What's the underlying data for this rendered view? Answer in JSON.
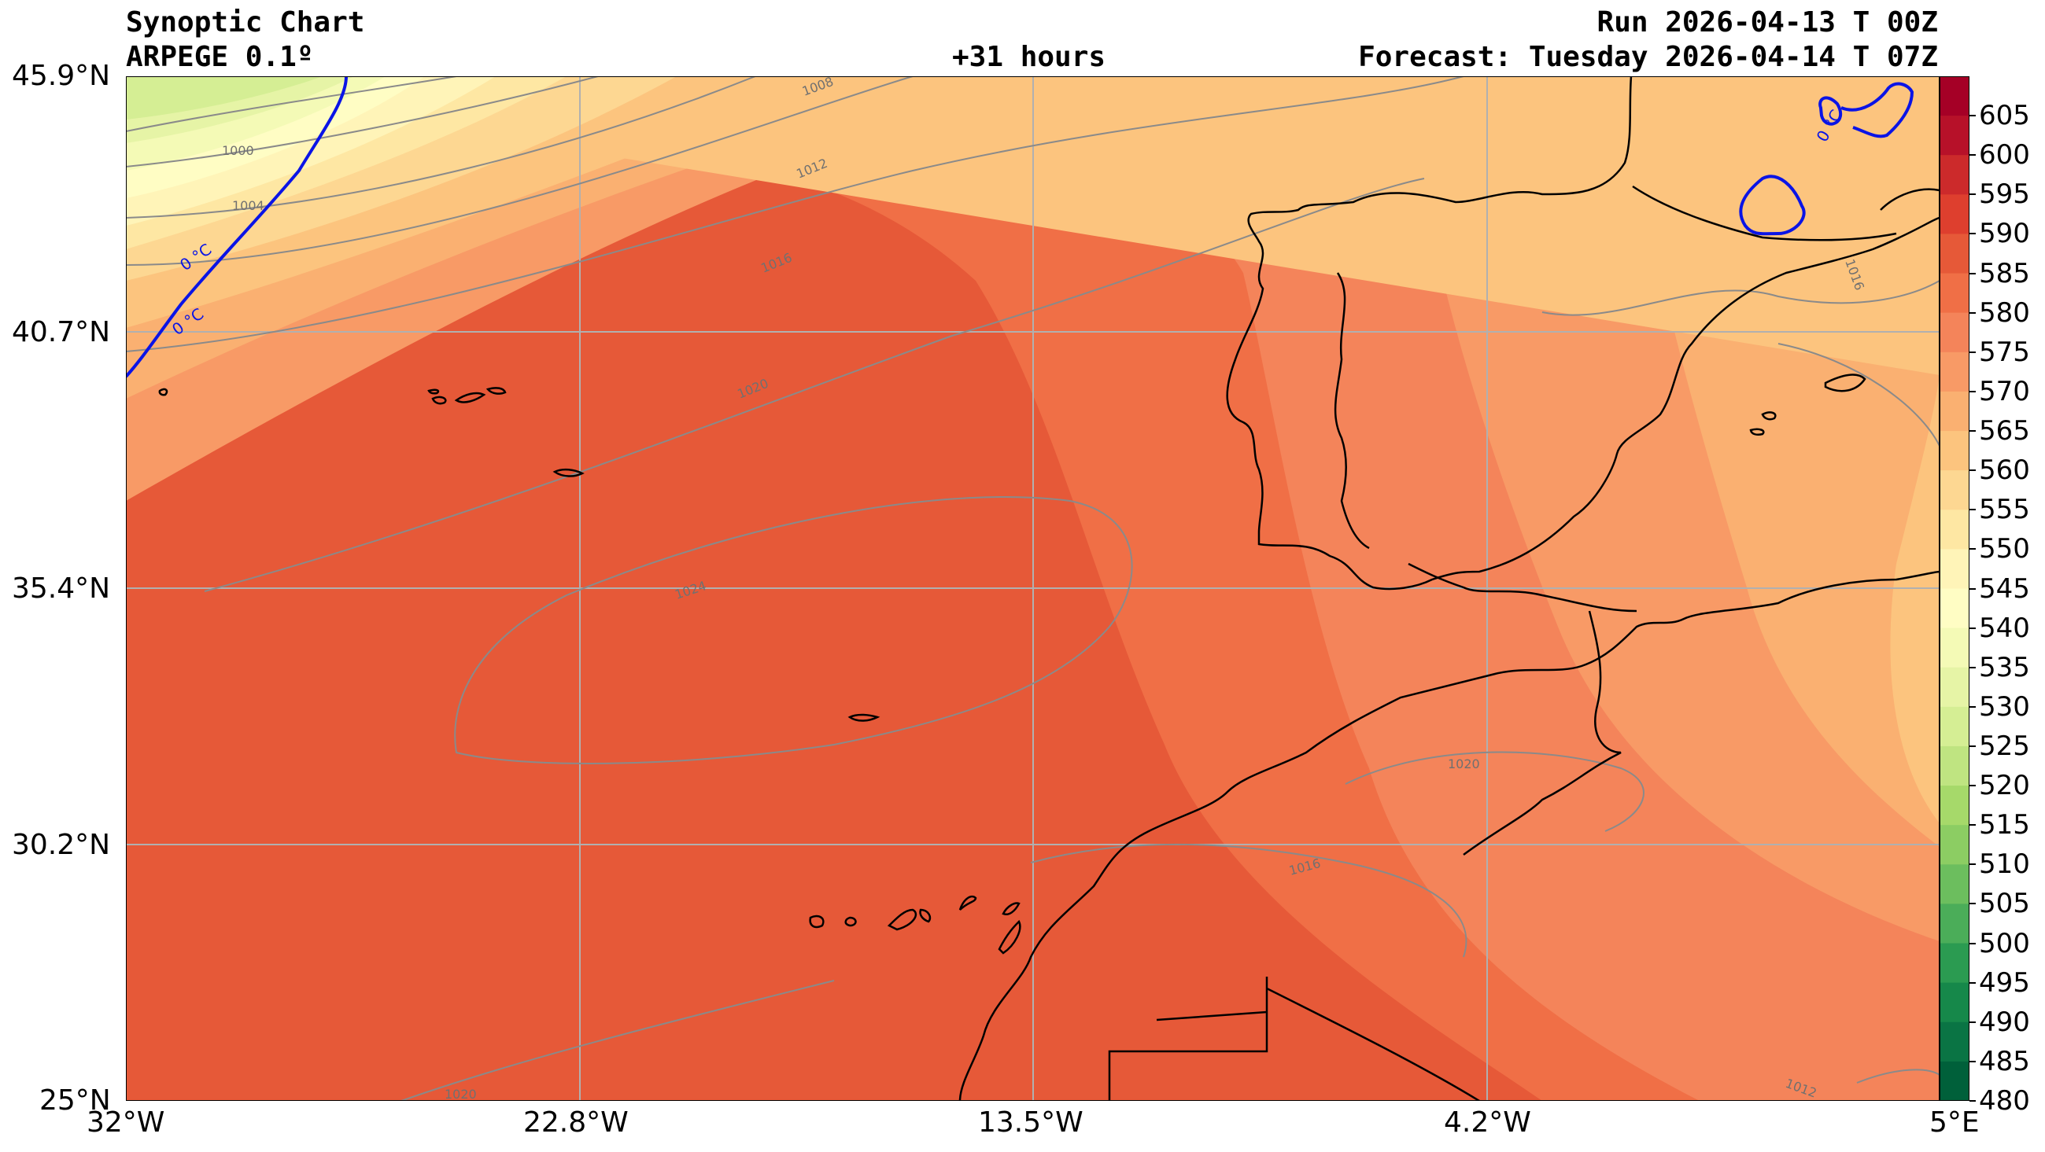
{
  "header": {
    "chart_type": "Synoptic Chart",
    "model": "ARPEGE 0.1º",
    "lead_time": "+31 hours",
    "run": "Run 2026-04-13 T 00Z",
    "forecast": "Forecast: Tuesday 2026-04-14 T 07Z"
  },
  "axes": {
    "lat_labels": [
      "45.9°N",
      "40.7°N",
      "35.4°N",
      "30.2°N",
      "25°N"
    ],
    "lon_labels": [
      "32°W",
      "22.8°W",
      "13.5°W",
      "4.2°W",
      "5°E"
    ],
    "lat_range": [
      25.0,
      45.9
    ],
    "lon_range": [
      -32.0,
      5.0
    ],
    "grid": true
  },
  "colorbar": {
    "ticks": [
      "605",
      "600",
      "595",
      "590",
      "585",
      "580",
      "575",
      "570",
      "565",
      "560",
      "555",
      "550",
      "545",
      "540",
      "535",
      "530",
      "525",
      "520",
      "515",
      "510",
      "505",
      "500",
      "495",
      "490",
      "485",
      "480"
    ],
    "colors": [
      "#a50026",
      "#b71129",
      "#cc2a2b",
      "#de3f2e",
      "#e65938",
      "#f06f46",
      "#f4845a",
      "#f89a66",
      "#fab071",
      "#fcc47e",
      "#fdd792",
      "#fee7a3",
      "#fff4b8",
      "#fffdc4",
      "#f4fab6",
      "#e6f4a6",
      "#d5ee94",
      "#bfe481",
      "#a6d96a",
      "#8ccd63",
      "#6cbe5e",
      "#4bad59",
      "#2b9b51",
      "#16884a",
      "#0a7444",
      "#00603a"
    ]
  },
  "map_labels": {
    "freezing_line": "0 °C",
    "isobars": [
      "1000",
      "1004",
      "1008",
      "1012",
      "1016",
      "1020",
      "1024",
      "1020",
      "1016",
      "1012",
      "1016",
      "1020"
    ]
  },
  "style": {
    "freezing_line_color": "#0a14e6",
    "isobar_color": "#8a8a8a",
    "coast_color": "#000000"
  }
}
